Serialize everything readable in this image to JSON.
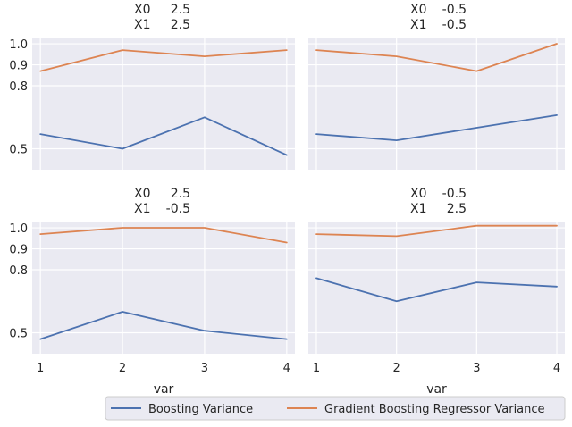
{
  "chart_data": {
    "type": "line",
    "facet_grid": "2x2",
    "shared_x": true,
    "shared_y": true,
    "x": [
      1,
      2,
      3,
      4
    ],
    "xticks": [
      "1",
      "2",
      "3",
      "4"
    ],
    "xlabel": "var",
    "xlim": [
      0.9,
      4.1
    ],
    "ylim": [
      0.4,
      1.03
    ],
    "yticks": [
      "1.0",
      "0.9",
      "0.8",
      "0.5"
    ],
    "ytick_values": [
      1.0,
      0.9,
      0.8,
      0.5
    ],
    "grid": true,
    "legend_position": "bottom-right",
    "legend": [
      {
        "name": "Boosting Variance",
        "color": "#4c72b0"
      },
      {
        "name": "Gradient Boosting Regressor Variance",
        "color": "#dd8452"
      }
    ],
    "panels": [
      {
        "title_lines": [
          {
            "label": "X0",
            "value": "2.5"
          },
          {
            "label": "X1",
            "value": "2.5"
          }
        ],
        "series": [
          {
            "name": "Boosting Variance",
            "values": [
              0.57,
              0.5,
              0.65,
              0.47
            ]
          },
          {
            "name": "Gradient Boosting Regressor Variance",
            "values": [
              0.87,
              0.97,
              0.94,
              0.97
            ]
          }
        ]
      },
      {
        "title_lines": [
          {
            "label": "X0",
            "value": "-0.5"
          },
          {
            "label": "X1",
            "value": "-0.5"
          }
        ],
        "series": [
          {
            "name": "Boosting Variance",
            "values": [
              0.57,
              0.54,
              0.6,
              0.66
            ]
          },
          {
            "name": "Gradient Boosting Regressor Variance",
            "values": [
              0.97,
              0.94,
              0.87,
              1.0
            ]
          }
        ]
      },
      {
        "title_lines": [
          {
            "label": "X0",
            "value": "2.5"
          },
          {
            "label": "X1",
            "value": "-0.5"
          }
        ],
        "series": [
          {
            "name": "Boosting Variance",
            "values": [
              0.47,
              0.6,
              0.51,
              0.47
            ]
          },
          {
            "name": "Gradient Boosting Regressor Variance",
            "values": [
              0.97,
              1.0,
              1.0,
              0.93
            ]
          }
        ]
      },
      {
        "title_lines": [
          {
            "label": "X0",
            "value": "-0.5"
          },
          {
            "label": "X1",
            "value": "2.5"
          }
        ],
        "series": [
          {
            "name": "Boosting Variance",
            "values": [
              0.76,
              0.65,
              0.74,
              0.72
            ]
          },
          {
            "name": "Gradient Boosting Regressor Variance",
            "values": [
              0.97,
              0.96,
              1.01,
              1.01
            ]
          }
        ]
      }
    ]
  }
}
